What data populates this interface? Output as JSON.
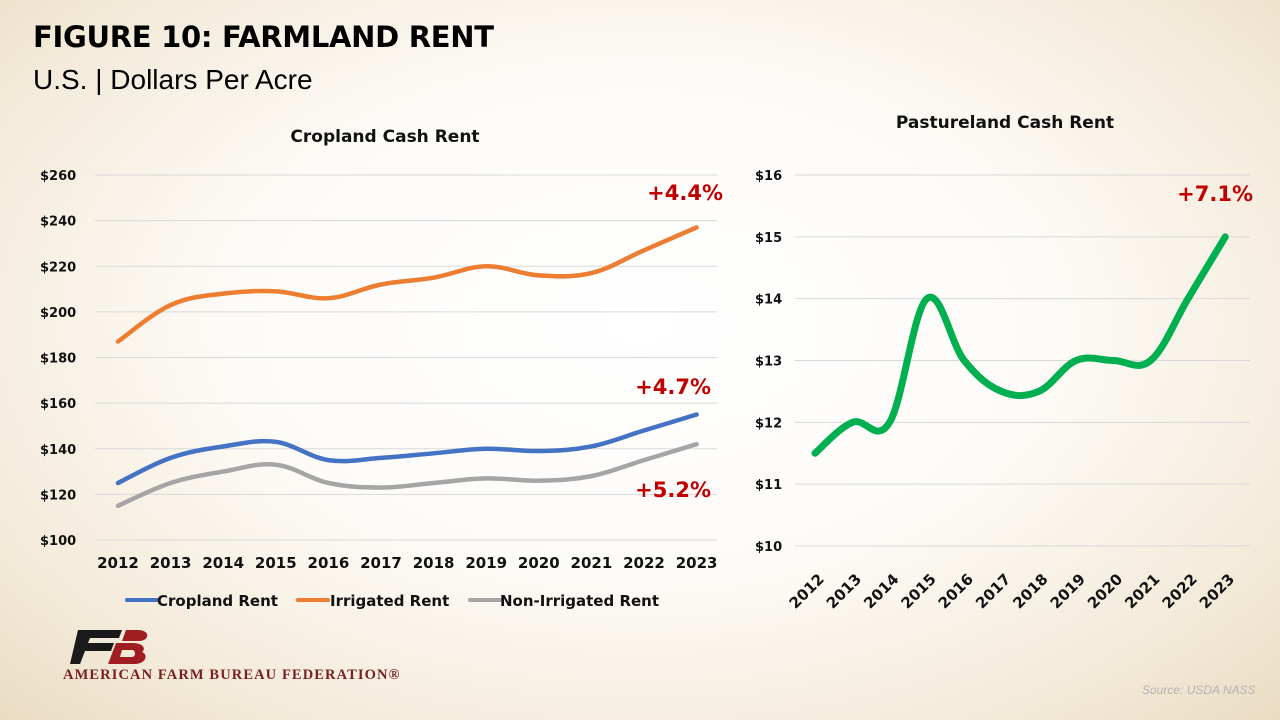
{
  "title": "FIGURE 10: FARMLAND RENT",
  "subtitle": "U.S. | Dollars Per Acre",
  "logo_text": "AMERICAN FARM BUREAU FEDERATION®",
  "source": "Source: USDA NASS",
  "chart_data": [
    {
      "type": "line",
      "title": "Cropland Cash Rent",
      "xlabel": "",
      "ylabel": "",
      "categories": [
        "2012",
        "2013",
        "2014",
        "2015",
        "2016",
        "2017",
        "2018",
        "2019",
        "2020",
        "2021",
        "2022",
        "2023"
      ],
      "ylim": [
        100,
        260
      ],
      "yticks": [
        "$100",
        "$120",
        "$140",
        "$160",
        "$180",
        "$200",
        "$220",
        "$240",
        "$260"
      ],
      "grid": true,
      "legend": "bottom",
      "series": [
        {
          "name": "Cropland Rent",
          "color": "#4472c4",
          "values": [
            125,
            136,
            141,
            143,
            135,
            136,
            138,
            140,
            139,
            141,
            148,
            155
          ]
        },
        {
          "name": "Irrigated Rent",
          "color": "#ed7d31",
          "values": [
            187,
            203,
            208,
            209,
            206,
            212,
            215,
            220,
            216,
            217,
            227,
            237
          ]
        },
        {
          "name": "Non-Irrigated Rent",
          "color": "#a5a5a5",
          "values": [
            115,
            125,
            130,
            133,
            125,
            123,
            125,
            127,
            126,
            128,
            135,
            142
          ]
        }
      ],
      "annotations": [
        {
          "text": "+4.4%",
          "series": "Irrigated Rent"
        },
        {
          "text": "+4.7%",
          "series": "Cropland Rent"
        },
        {
          "text": "+5.2%",
          "series": "Non-Irrigated Rent"
        }
      ]
    },
    {
      "type": "line",
      "title": "Pastureland Cash Rent",
      "xlabel": "",
      "ylabel": "",
      "categories": [
        "2012",
        "2013",
        "2014",
        "2015",
        "2016",
        "2017",
        "2018",
        "2019",
        "2020",
        "2021",
        "2022",
        "2023"
      ],
      "ylim": [
        10,
        16
      ],
      "yticks": [
        "$10",
        "$11",
        "$12",
        "$13",
        "$14",
        "$15",
        "$16"
      ],
      "grid": true,
      "series": [
        {
          "color": "#00b050",
          "values": [
            11.5,
            12,
            12,
            14,
            13,
            12.5,
            12.5,
            13,
            13,
            13,
            14,
            15
          ]
        }
      ],
      "annotations": [
        {
          "text": "+7.1%"
        }
      ]
    }
  ]
}
